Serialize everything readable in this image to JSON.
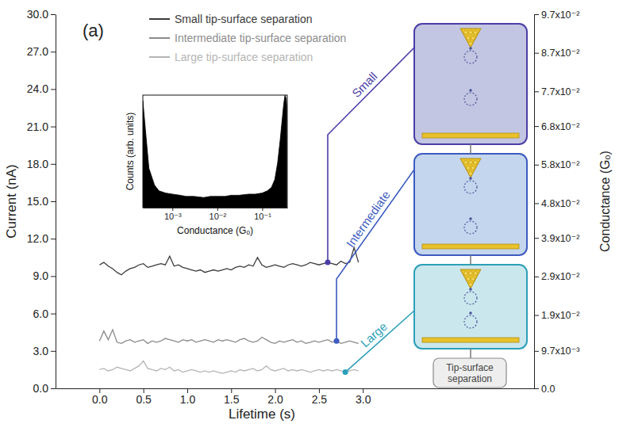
{
  "chart_data": [
    {
      "type": "line",
      "panel_label": "(a)",
      "xlabel": "Lifetime (s)",
      "ylabel": "Current (nA)",
      "y2label": "Conductance (Gₒ)",
      "x": [
        0,
        0.05,
        0.1,
        0.15,
        0.2,
        0.25,
        0.3,
        0.35,
        0.4,
        0.45,
        0.5,
        0.55,
        0.6,
        0.65,
        0.7,
        0.75,
        0.8,
        0.85,
        0.9,
        0.95,
        1,
        1.05,
        1.1,
        1.15,
        1.2,
        1.25,
        1.3,
        1.35,
        1.4,
        1.45,
        1.5,
        1.55,
        1.6,
        1.65,
        1.7,
        1.75,
        1.8,
        1.85,
        1.9,
        1.95,
        2,
        2.05,
        2.1,
        2.15,
        2.2,
        2.25,
        2.3,
        2.35,
        2.4,
        2.45,
        2.5,
        2.55,
        2.6,
        2.65,
        2.7,
        2.75,
        2.8,
        2.85,
        2.9,
        2.95
      ],
      "series": [
        {
          "name": "Small tip-surface separation",
          "color": "#3b3b3b",
          "values": [
            9.9,
            10.1,
            9.8,
            9.6,
            9.3,
            9.1,
            9.4,
            9.6,
            9.7,
            9.9,
            10.0,
            9.7,
            9.8,
            9.9,
            10.0,
            9.9,
            10.6,
            9.8,
            9.9,
            9.7,
            9.6,
            9.5,
            9.4,
            9.5,
            9.3,
            9.4,
            9.5,
            9.4,
            9.5,
            9.6,
            9.5,
            9.7,
            9.8,
            9.7,
            9.9,
            9.8,
            10.5,
            9.9,
            9.7,
            9.8,
            9.9,
            9.8,
            9.7,
            9.9,
            10.0,
            9.9,
            9.8,
            9.9,
            10.1,
            10.0,
            9.9,
            10.0,
            10.1,
            10.0,
            9.9,
            10.2,
            10.0,
            10.1,
            11.3,
            10.1
          ]
        },
        {
          "name": "Intermediate tip-surface separation",
          "color": "#8c8c8c",
          "values": [
            3.8,
            4.6,
            3.9,
            4.7,
            3.7,
            3.6,
            3.8,
            3.9,
            3.7,
            3.8,
            3.9,
            3.6,
            3.8,
            3.7,
            3.8,
            4.0,
            3.9,
            3.8,
            3.7,
            3.9,
            3.8,
            3.9,
            3.7,
            3.8,
            3.9,
            3.8,
            3.7,
            3.9,
            3.8,
            3.9,
            3.8,
            3.7,
            3.9,
            4.0,
            3.8,
            3.7,
            3.8,
            4.1,
            3.9,
            3.7,
            3.6,
            3.8,
            3.7,
            3.8,
            3.9,
            3.7,
            3.8,
            3.6,
            3.7,
            3.8,
            3.7,
            3.8,
            3.9,
            3.7,
            3.8,
            3.6,
            3.7,
            3.8,
            3.7,
            3.6
          ]
        },
        {
          "name": "Large tip-surface separation",
          "color": "#b5b5b5",
          "values": [
            1.5,
            1.6,
            1.4,
            1.5,
            1.7,
            1.6,
            1.5,
            1.4,
            1.6,
            1.8,
            2.2,
            1.6,
            1.5,
            1.4,
            1.6,
            1.5,
            1.7,
            1.4,
            1.5,
            1.3,
            1.4,
            1.5,
            1.4,
            1.3,
            1.4,
            1.3,
            1.4,
            1.3,
            1.2,
            1.3,
            1.4,
            1.3,
            1.5,
            1.4,
            1.5,
            1.6,
            1.4,
            1.5,
            1.8,
            1.5,
            1.4,
            1.5,
            1.6,
            1.4,
            1.5,
            1.4,
            1.5,
            1.4,
            1.3,
            1.4,
            1.5,
            1.4,
            1.5,
            1.4,
            1.5,
            1.4,
            1.3,
            1.4,
            1.5,
            1.4
          ]
        }
      ],
      "xlim": [
        -0.5,
        4.95
      ],
      "xticks": [
        {
          "value": 0,
          "label": "0.0"
        },
        0.5,
        {
          "value": 1,
          "label": "1.0"
        },
        1.5,
        {
          "value": 2,
          "label": "2.0"
        },
        2.5,
        {
          "value": 3,
          "label": "3.0"
        }
      ],
      "ylim": [
        0,
        30
      ],
      "yticks": [
        {
          "value": 0,
          "label": "0.0"
        },
        {
          "value": 3,
          "label": "3.0"
        },
        {
          "value": 6,
          "label": "6.0"
        },
        {
          "value": 9,
          "label": "9.0"
        },
        {
          "value": 12,
          "label": "12.0"
        },
        {
          "value": 15,
          "label": "15.0"
        },
        {
          "value": 18,
          "label": "18.0"
        },
        {
          "value": 21,
          "label": "21.0"
        },
        {
          "value": 24,
          "label": "24.0"
        },
        {
          "value": 27,
          "label": "27.0"
        },
        {
          "value": 30,
          "label": "30.0"
        }
      ],
      "y2lim": [
        0,
        0.097
      ],
      "y2ticks": [
        {
          "value": 0,
          "label": "0.0"
        },
        {
          "value": 0.0097,
          "label": "9.7x10⁻³"
        },
        {
          "value": 0.019,
          "label": "1.9x10⁻²"
        },
        {
          "value": 0.029,
          "label": "2.9x10⁻²"
        },
        {
          "value": 0.039,
          "label": "3.9x10⁻²"
        },
        {
          "value": 0.048,
          "label": "4.8x10⁻²"
        },
        {
          "value": 0.058,
          "label": "5.8x10⁻²"
        },
        {
          "value": 0.068,
          "label": "6.8x10⁻²"
        },
        {
          "value": 0.077,
          "label": "7.7x10⁻²"
        },
        {
          "value": 0.087,
          "label": "8.7x10⁻²"
        },
        {
          "value": 0.097,
          "label": "9.7x10⁻²"
        }
      ],
      "legend": "top",
      "annotations": [
        "Small",
        "Intermediate",
        "Large",
        "Tip-surface separation"
      ]
    },
    {
      "type": "area",
      "xlabel": "Conductance (Gₒ)",
      "ylabel": "Counts (arb. units)",
      "x": [
        0.00022,
        0.00025,
        0.0003,
        0.0004,
        0.0005,
        0.0007,
        0.001,
        0.0015,
        0.002,
        0.003,
        0.005,
        0.007,
        0.01,
        0.015,
        0.02,
        0.03,
        0.05,
        0.07,
        0.1,
        0.13,
        0.16,
        0.19,
        0.22,
        0.25,
        0.28,
        0.3,
        0.32,
        0.34,
        0.35
      ],
      "values": [
        0.95,
        0.7,
        0.35,
        0.2,
        0.15,
        0.13,
        0.12,
        0.11,
        0.1,
        0.1,
        0.09,
        0.1,
        0.1,
        0.1,
        0.11,
        0.11,
        0.12,
        0.12,
        0.13,
        0.15,
        0.18,
        0.25,
        0.4,
        0.6,
        0.8,
        0.92,
        1.0,
        0.97,
        0.9
      ],
      "color": "#000000",
      "xlim": [
        0.00022,
        0.36
      ],
      "xticks": [
        {
          "value": 0.001,
          "label": "10⁻³"
        },
        {
          "value": 0.01,
          "label": "10⁻²"
        },
        {
          "value": 0.1,
          "label": "10⁻¹"
        }
      ],
      "ylim": [
        0,
        1
      ],
      "log": "x",
      "tick_labels": "x"
    }
  ]
}
